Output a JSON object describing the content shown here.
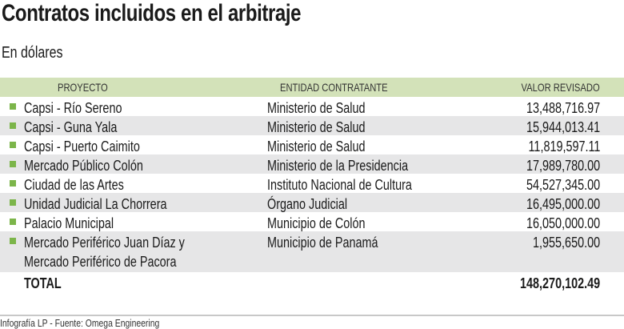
{
  "title": "Contratos incluidos en el arbitraje",
  "subtitle": "En dólares",
  "columns": {
    "project": "PROYECTO",
    "entity": "ENTIDAD CONTRATANTE",
    "value": "VALOR REVISADO"
  },
  "rows": [
    {
      "project": "Capsi - Río Sereno",
      "entity": "Ministerio de Salud",
      "value": "13,488,716.97"
    },
    {
      "project": "Capsi - Guna Yala",
      "entity": "Ministerio de Salud",
      "value": "15,944,013.41"
    },
    {
      "project": "Capsi - Puerto Caimito",
      "entity": "Ministerio de Salud",
      "value": "11,819,597.11"
    },
    {
      "project": "Mercado Público Colón",
      "entity": "Ministerio de la Presidencia",
      "value": "17,989,780.00"
    },
    {
      "project": "Ciudad de las Artes",
      "entity": "Instituto Nacional de Cultura",
      "value": "54,527,345.00"
    },
    {
      "project": "Unidad Judicial La Chorrera",
      "entity": "Órgano Judicial",
      "value": "16,495,000.00"
    },
    {
      "project": "Palacio Municipal",
      "entity": "Municipio de Colón",
      "value": "16,050,000.00"
    },
    {
      "project": "Mercado Periférico Juan Díaz y",
      "project_line2": "Mercado Periférico de Pacora",
      "entity": "Municipio de Panamá",
      "value": "1,955,650.00"
    }
  ],
  "total": {
    "label": "TOTAL",
    "value": "148,270,102.49"
  },
  "footer": "Infografía LP  - Fuente: Omega Engineering",
  "colors": {
    "header": "#d3e2b9",
    "bullet": "#7cb54a",
    "alt_row": "#e6e6e7"
  }
}
